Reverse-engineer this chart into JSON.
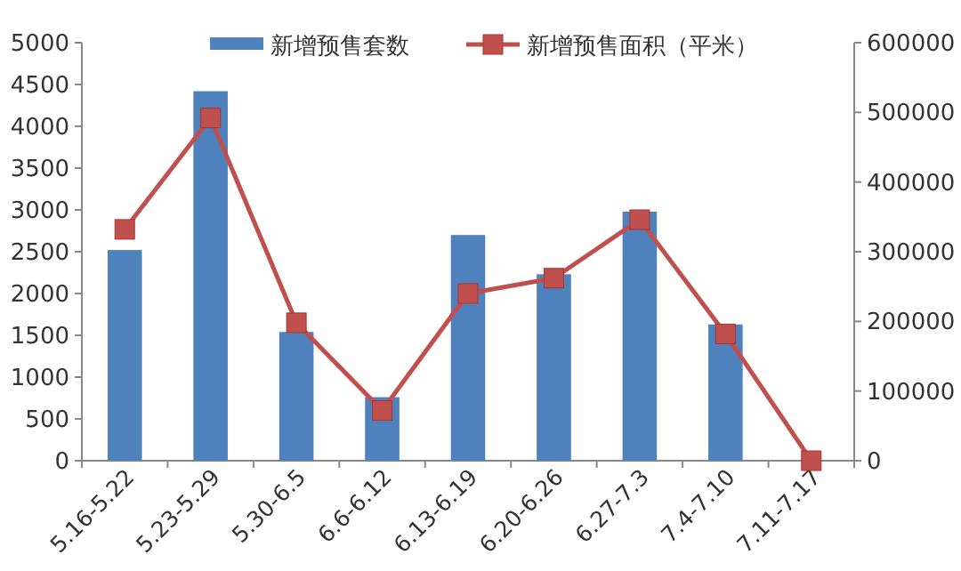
{
  "chart_data": {
    "type": "bar",
    "categories": [
      "5.16-5.22",
      "5.23-5.29",
      "5.30-6.5",
      "6.6-6.12",
      "6.13-6.19",
      "6.20-6.26",
      "6.27-7.3",
      "7.4-7.10",
      "7.11-7.17"
    ],
    "series": [
      {
        "name": "新增预售套数",
        "color": "#4f81bd",
        "values": [
          2520,
          4420,
          1540,
          760,
          2700,
          2230,
          2980,
          1630,
          null
        ]
      },
      {
        "name": "新增预售面积（平米）",
        "type": "line",
        "axis": "y2",
        "color": "#c0504d",
        "values": [
          332000,
          492000,
          198000,
          72000,
          240000,
          262000,
          346000,
          182000,
          0
        ]
      }
    ],
    "ylim": [
      0,
      5000
    ],
    "yticks": [
      0,
      500,
      1000,
      1500,
      2000,
      2500,
      3000,
      3500,
      4000,
      4500,
      5000
    ],
    "y2lim": [
      0,
      600000
    ],
    "y2ticks": [
      0,
      100000,
      200000,
      300000,
      400000,
      500000,
      600000
    ],
    "marker": "square",
    "legend": "top",
    "grid": false
  }
}
